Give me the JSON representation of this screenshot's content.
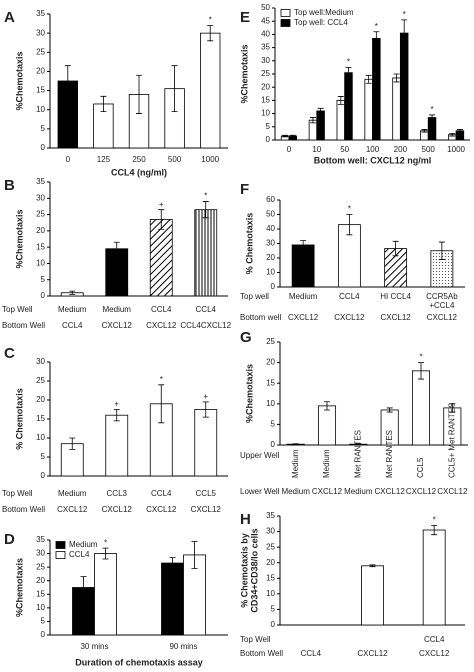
{
  "chart_data": [
    {
      "type": "bar",
      "panel": "A",
      "ylabel": [
        "%Chemotaxis"
      ],
      "xlabel": "CCL4 (ng/ml)",
      "categories": [
        "0",
        "125",
        "250",
        "500",
        "1000"
      ],
      "series": [
        {
          "colors": [
            "#000000",
            "#ffffff",
            "#ffffff",
            "#ffffff",
            "#ffffff"
          ],
          "values": [
            17.5,
            11.5,
            14,
            15.5,
            30
          ],
          "errors": [
            4,
            2,
            5,
            6,
            2
          ],
          "markers": [
            null,
            null,
            null,
            null,
            "*"
          ]
        }
      ],
      "ylim": [
        0,
        35
      ],
      "yticks": [
        0,
        5,
        10,
        15,
        20,
        25,
        30,
        35
      ]
    },
    {
      "type": "bar",
      "panel": "B",
      "ylabel": [
        "%Chemotaxis"
      ],
      "series": [
        {
          "colors": [
            "#ffffff",
            "#000000",
            "#ffffff",
            "#ffffff"
          ],
          "patterns": [
            null,
            null,
            "hatch",
            "vstripe"
          ],
          "values": [
            1,
            14.5,
            23.5,
            26.5
          ],
          "errors": [
            0.5,
            2,
            3,
            2.5
          ],
          "markers": [
            null,
            null,
            "+",
            "*"
          ]
        }
      ],
      "rows": [
        {
          "label": "Top Well",
          "values": [
            "Medium",
            "Medium",
            "CCL4",
            "CCL4"
          ]
        },
        {
          "label": "Bottom Well",
          "values": [
            "CCL4",
            "CXCL12",
            "CXCL12",
            "CCL4CXCL12"
          ]
        }
      ],
      "ylim": [
        0,
        35
      ],
      "yticks": [
        0,
        5,
        10,
        15,
        20,
        25,
        30,
        35
      ]
    },
    {
      "type": "bar",
      "panel": "C",
      "ylabel": [
        "% Chemotaxis"
      ],
      "series": [
        {
          "colors": [
            "#ffffff",
            "#ffffff",
            "#ffffff",
            "#ffffff"
          ],
          "values": [
            8.5,
            16,
            19,
            17.5
          ],
          "errors": [
            1.5,
            1.5,
            5,
            2
          ],
          "markers": [
            null,
            "+",
            "*",
            "+"
          ]
        }
      ],
      "rows": [
        {
          "label": "Top Well",
          "values": [
            "Medium",
            "CCL3",
            "CCL4",
            "CCL5"
          ]
        },
        {
          "label": "Bottom Well",
          "values": [
            "CXCL12",
            "CXCL12",
            "CXCL12",
            "CXCL12"
          ]
        }
      ],
      "ylim": [
        0,
        30
      ],
      "yticks": [
        0,
        5,
        10,
        15,
        20,
        25,
        30
      ]
    },
    {
      "type": "bar",
      "panel": "D",
      "ylabel": [
        "%Chemotaxis"
      ],
      "xlabel": "Duration of chemotaxis assay",
      "legend": "upper left",
      "categories": [
        "30 mins",
        "90 mins"
      ],
      "series": [
        {
          "name": "Medium",
          "color": "#000000",
          "values": [
            17.5,
            26.5
          ],
          "errors": [
            4,
            2
          ],
          "markers": [
            null,
            null
          ]
        },
        {
          "name": "CCL4",
          "color": "#ffffff",
          "values": [
            30,
            29.5
          ],
          "errors": [
            2,
            5
          ],
          "markers": [
            "*",
            null
          ]
        }
      ],
      "ylim": [
        0,
        35
      ],
      "yticks": [
        0,
        5,
        10,
        15,
        20,
        25,
        30,
        35
      ]
    },
    {
      "type": "bar",
      "panel": "E",
      "ylabel": [
        "%Chemotaxis"
      ],
      "xlabel": "Bottom well: CXCL12 ng/ml",
      "legend": "upper left",
      "categories": [
        "0",
        "10",
        "50",
        "100",
        "200",
        "500",
        "1000"
      ],
      "series": [
        {
          "name": "Top well:Medium",
          "color": "#ffffff",
          "values": [
            1.5,
            7.5,
            15,
            23,
            23.5,
            3.5,
            2
          ],
          "errors": [
            0.3,
            1,
            1.5,
            1.5,
            1.5,
            0.5,
            0.5
          ],
          "markers": [
            null,
            null,
            null,
            null,
            null,
            null,
            null
          ]
        },
        {
          "name": "Top well: CCL4",
          "color": "#000000",
          "values": [
            1.5,
            11,
            25.5,
            38.5,
            40.5,
            8.5,
            3.5
          ],
          "errors": [
            0.3,
            1,
            2,
            2.5,
            5,
            1,
            0.5
          ],
          "markers": [
            null,
            null,
            "*",
            "*",
            "*",
            "*",
            null
          ]
        }
      ],
      "ylim": [
        0,
        50
      ],
      "yticks": [
        0,
        5,
        10,
        15,
        20,
        25,
        30,
        35,
        40,
        45,
        50
      ]
    },
    {
      "type": "bar",
      "panel": "F",
      "ylabel": [
        "% Chemotaxis"
      ],
      "series": [
        {
          "colors": [
            "#000000",
            "#ffffff",
            "#ffffff",
            "#ffffff"
          ],
          "patterns": [
            null,
            null,
            "hatch",
            "dots"
          ],
          "values": [
            29,
            43,
            26.5,
            25
          ],
          "errors": [
            3,
            7,
            5,
            6
          ],
          "markers": [
            null,
            "*",
            null,
            null
          ]
        }
      ],
      "rows": [
        {
          "label": "Top well",
          "values": [
            "Medium",
            "CCL4",
            "HI CCL4",
            "CCR5Ab"
          ]
        },
        {
          "label": null,
          "values": [
            null,
            null,
            null,
            "+CCL4"
          ]
        },
        {
          "label": "Bottom well",
          "values": [
            "CXCL12",
            "CXCL12",
            "CXCL12",
            "CXCL12"
          ]
        }
      ],
      "ylim": [
        0,
        60
      ],
      "yticks": [
        0,
        10,
        20,
        30,
        40,
        50,
        60
      ]
    },
    {
      "type": "bar",
      "panel": "G",
      "ylabel": [
        "%Chemotaxis"
      ],
      "series": [
        {
          "colors": [
            "#ffffff",
            "#ffffff",
            "#ffffff",
            "#ffffff",
            "#ffffff",
            "#ffffff"
          ],
          "values": [
            0.2,
            9.5,
            0.2,
            8.5,
            18,
            9
          ],
          "errors": [
            0.1,
            1,
            0.1,
            0.5,
            2,
            1
          ],
          "markers": [
            null,
            null,
            null,
            null,
            "*",
            null
          ]
        }
      ],
      "rows": [
        {
          "label": "Upper Well",
          "rotate": true,
          "values": [
            "Medium",
            "Medium",
            "Met RANTES",
            "Met RANTES",
            "CCL5",
            "CCL5+ Met RANTES"
          ]
        },
        {
          "label": "Lower Well",
          "values": [
            "Medium",
            "CXCL12",
            "Medium",
            "CXCL12",
            "CXCL12",
            "CXCL12"
          ]
        }
      ],
      "ylim": [
        0,
        25
      ],
      "yticks": [
        0,
        5,
        10,
        15,
        20,
        25
      ]
    },
    {
      "type": "bar",
      "panel": "H",
      "ylabel": [
        "% Chemotaxis by",
        "CD34+CD38/lo cells"
      ],
      "series": [
        {
          "colors": [
            "#ffffff",
            "#ffffff",
            "#ffffff"
          ],
          "values": [
            0,
            19,
            30.5
          ],
          "errors": [
            0,
            0.3,
            1.5
          ],
          "markers": [
            null,
            null,
            "*"
          ]
        }
      ],
      "rows": [
        {
          "label": "Top Well",
          "values": [
            null,
            null,
            "CCL4"
          ]
        },
        {
          "label": "Bottom Well",
          "values": [
            "CCL4",
            "CXCL12",
            "CXCL12"
          ]
        }
      ],
      "ylim": [
        0,
        35
      ],
      "yticks": [
        0,
        5,
        10,
        15,
        20,
        25,
        30,
        35
      ]
    }
  ]
}
